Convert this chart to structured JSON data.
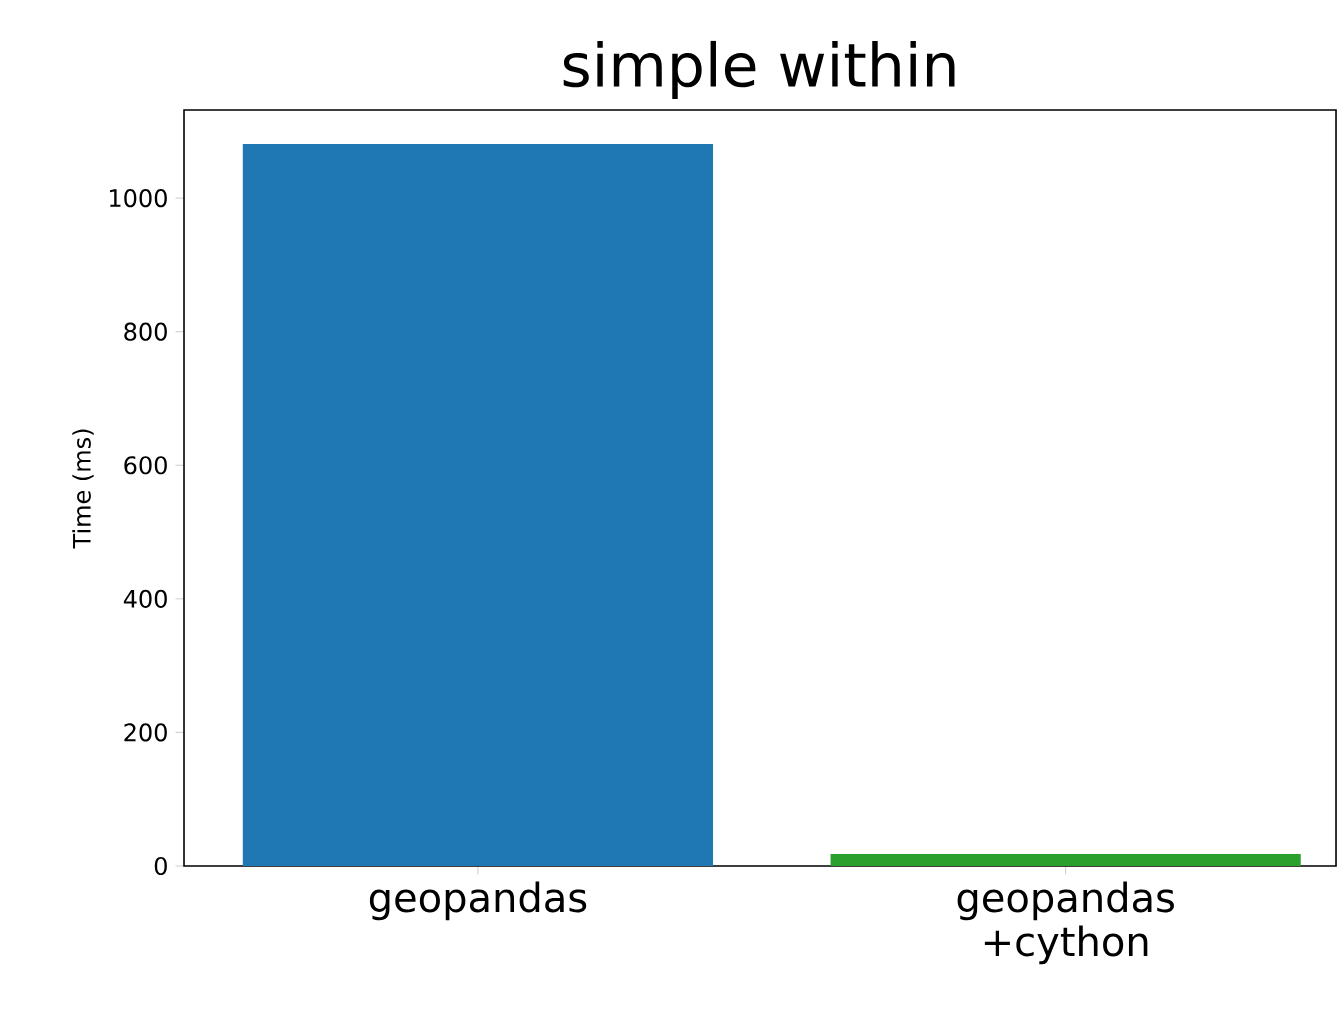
{
  "chart_data": {
    "type": "bar",
    "title": "simple within",
    "ylabel": "Time (ms)",
    "categories": [
      "geopandas",
      "geopandas +cython"
    ],
    "values": [
      1081,
      18
    ],
    "colors": [
      "#1f77b4",
      "#2ca02c"
    ],
    "ylim": [
      0,
      1132
    ],
    "yticks": [
      0,
      200,
      400,
      600,
      800,
      1000
    ],
    "grid": false
  }
}
